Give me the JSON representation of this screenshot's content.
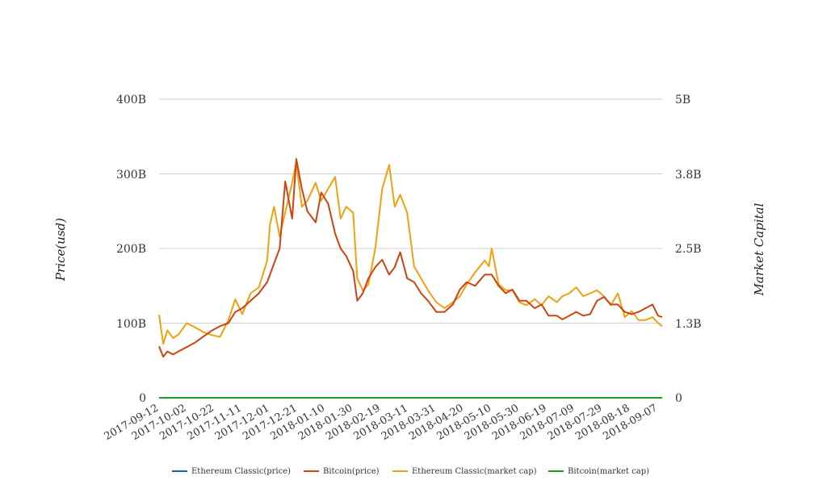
{
  "chart_data": {
    "type": "line",
    "title": "",
    "ylabel_left": "Price(usd)",
    "ylabel_right": "Market Capital",
    "yticks_left": [
      "0",
      "100B",
      "200B",
      "300B",
      "400B"
    ],
    "yticks_right": [
      "0",
      "1.3B",
      "2.5B",
      "3.8B",
      "5B"
    ],
    "ylim_left": [
      0,
      400000000000
    ],
    "ylim_right": [
      0,
      5000000000
    ],
    "x_start": "2017-09-12",
    "x_end": "2018-09-10",
    "xticks": [
      "2017-09-12",
      "2017-10-02",
      "2017-10-22",
      "2017-11-11",
      "2017-12-01",
      "2017-12-21",
      "2018-01-10",
      "2018-01-30",
      "2018-02-19",
      "2018-03-11",
      "2018-03-31",
      "2018-04-20",
      "2018-05-10",
      "2018-05-30",
      "2018-06-19",
      "2018-07-09",
      "2018-07-29",
      "2018-08-18",
      "2018-09-07"
    ],
    "grid": true,
    "legend_position": "bottom",
    "series": [
      {
        "name": "Ethereum Classic(price)",
        "axis": "left",
        "color": "#1f5fa8",
        "x": [
          "2017-09-12",
          "2018-09-10"
        ],
        "y": [
          0,
          0
        ]
      },
      {
        "name": "Bitcoin(price)",
        "axis": "left",
        "color": "#cc4411",
        "x": [
          "2017-09-12",
          "2017-09-15",
          "2017-09-18",
          "2017-09-22",
          "2017-09-26",
          "2017-10-02",
          "2017-10-08",
          "2017-10-14",
          "2017-10-20",
          "2017-10-26",
          "2017-11-01",
          "2017-11-06",
          "2017-11-11",
          "2017-11-17",
          "2017-11-23",
          "2017-11-29",
          "2017-12-04",
          "2017-12-08",
          "2017-12-12",
          "2017-12-17",
          "2017-12-20",
          "2017-12-24",
          "2017-12-28",
          "2018-01-03",
          "2018-01-07",
          "2018-01-12",
          "2018-01-17",
          "2018-01-21",
          "2018-01-25",
          "2018-01-30",
          "2018-02-02",
          "2018-02-06",
          "2018-02-10",
          "2018-02-15",
          "2018-02-20",
          "2018-02-25",
          "2018-03-01",
          "2018-03-05",
          "2018-03-10",
          "2018-03-15",
          "2018-03-20",
          "2018-03-25",
          "2018-03-31",
          "2018-04-06",
          "2018-04-12",
          "2018-04-17",
          "2018-04-22",
          "2018-04-28",
          "2018-05-05",
          "2018-05-10",
          "2018-05-15",
          "2018-05-20",
          "2018-05-25",
          "2018-05-30",
          "2018-06-04",
          "2018-06-10",
          "2018-06-15",
          "2018-06-20",
          "2018-06-26",
          "2018-06-30",
          "2018-07-05",
          "2018-07-10",
          "2018-07-15",
          "2018-07-20",
          "2018-07-25",
          "2018-07-30",
          "2018-08-04",
          "2018-08-09",
          "2018-08-14",
          "2018-08-19",
          "2018-08-24",
          "2018-08-29",
          "2018-09-03",
          "2018-09-07",
          "2018-09-10"
        ],
        "y": [
          69,
          55,
          62,
          58,
          62,
          68,
          74,
          82,
          90,
          96,
          100,
          115,
          120,
          130,
          140,
          155,
          180,
          200,
          290,
          240,
          320,
          280,
          250,
          235,
          275,
          260,
          220,
          200,
          190,
          170,
          130,
          140,
          160,
          175,
          185,
          165,
          175,
          195,
          160,
          155,
          140,
          130,
          115,
          115,
          125,
          145,
          155,
          150,
          165,
          165,
          150,
          140,
          145,
          130,
          130,
          120,
          125,
          110,
          110,
          105,
          110,
          115,
          110,
          112,
          130,
          135,
          125,
          125,
          115,
          112,
          115,
          120,
          125,
          110,
          108
        ]
      },
      {
        "name": "Ethereum Classic(market cap)",
        "axis": "right",
        "color": "#f0a010",
        "x": [
          "2017-09-12",
          "2017-09-15",
          "2017-09-18",
          "2017-09-22",
          "2017-09-26",
          "2017-10-02",
          "2017-10-08",
          "2017-10-14",
          "2017-10-20",
          "2017-10-26",
          "2017-11-01",
          "2017-11-06",
          "2017-11-11",
          "2017-11-17",
          "2017-11-23",
          "2017-11-29",
          "2017-12-01",
          "2017-12-04",
          "2017-12-08",
          "2017-12-12",
          "2017-12-17",
          "2017-12-20",
          "2017-12-24",
          "2017-12-28",
          "2018-01-03",
          "2018-01-07",
          "2018-01-12",
          "2018-01-17",
          "2018-01-21",
          "2018-01-25",
          "2018-01-30",
          "2018-02-02",
          "2018-02-06",
          "2018-02-10",
          "2018-02-15",
          "2018-02-20",
          "2018-02-25",
          "2018-03-01",
          "2018-03-05",
          "2018-03-10",
          "2018-03-15",
          "2018-03-20",
          "2018-03-25",
          "2018-03-31",
          "2018-04-06",
          "2018-04-12",
          "2018-04-17",
          "2018-04-22",
          "2018-04-28",
          "2018-05-05",
          "2018-05-08",
          "2018-05-10",
          "2018-05-15",
          "2018-05-20",
          "2018-05-25",
          "2018-05-30",
          "2018-06-04",
          "2018-06-10",
          "2018-06-15",
          "2018-06-20",
          "2018-06-26",
          "2018-06-30",
          "2018-07-05",
          "2018-07-10",
          "2018-07-15",
          "2018-07-20",
          "2018-07-25",
          "2018-07-30",
          "2018-08-04",
          "2018-08-09",
          "2018-08-14",
          "2018-08-19",
          "2018-08-24",
          "2018-08-29",
          "2018-09-03",
          "2018-09-07",
          "2018-09-10"
        ],
        "y": [
          1.39,
          0.9,
          1.13,
          1.0,
          1.06,
          1.25,
          1.18,
          1.1,
          1.05,
          1.02,
          1.3,
          1.65,
          1.4,
          1.75,
          1.85,
          2.3,
          2.9,
          3.2,
          2.7,
          3.1,
          3.6,
          3.95,
          3.2,
          3.3,
          3.6,
          3.3,
          3.5,
          3.7,
          3.0,
          3.2,
          3.1,
          2.0,
          1.8,
          1.9,
          2.5,
          3.5,
          3.9,
          3.2,
          3.4,
          3.1,
          2.2,
          2.0,
          1.8,
          1.6,
          1.5,
          1.6,
          1.7,
          1.9,
          2.1,
          2.3,
          2.2,
          2.5,
          1.9,
          1.8,
          1.8,
          1.6,
          1.55,
          1.65,
          1.55,
          1.7,
          1.6,
          1.7,
          1.75,
          1.85,
          1.7,
          1.75,
          1.8,
          1.7,
          1.55,
          1.75,
          1.35,
          1.45,
          1.3,
          1.3,
          1.35,
          1.25,
          1.2
        ]
      },
      {
        "name": "Bitcoin(market cap)",
        "axis": "right",
        "color": "#229922",
        "x": [
          "2017-09-12",
          "2018-09-10"
        ],
        "y": [
          0,
          0
        ]
      }
    ]
  }
}
